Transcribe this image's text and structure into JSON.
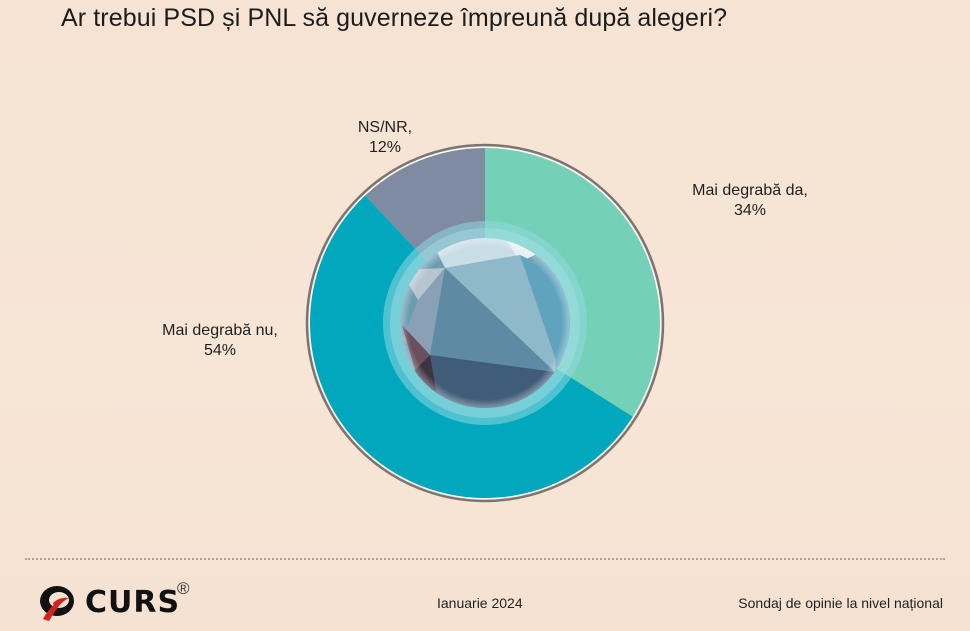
{
  "header": {
    "title": "Ar trebui PSD și PNL să guverneze împreună după alegeri?"
  },
  "chart_data": {
    "type": "pie",
    "variant": "donut",
    "title": "Ar trebui PSD și PNL să guverneze împreună după alegeri?",
    "categories": [
      "Mai degrabă da",
      "Mai degrabă nu",
      "NS/NR"
    ],
    "values": [
      34,
      54,
      12
    ],
    "unit": "%",
    "start_angle": "12 o'clock, clockwise",
    "colors": [
      "#74d0b7",
      "#00a7bd",
      "#7e8ba0"
    ],
    "labels": [
      {
        "line1": "Mai degrabă da,",
        "line2": "34%"
      },
      {
        "line1": "Mai degrabă nu,",
        "line2": "54%"
      },
      {
        "line1": "NS/NR,",
        "line2": "12%"
      }
    ],
    "legend": "none (labels outside slices)",
    "grid": false
  },
  "footer": {
    "logo_text": "CURS",
    "logo_mark": "®",
    "date": "Ianuarie 2024",
    "note": "Sondaj de opinie la nivel național"
  },
  "colors": {
    "background": "#f6e3d4",
    "divider": "#a9a39d",
    "logo_red": "#d4201f"
  }
}
